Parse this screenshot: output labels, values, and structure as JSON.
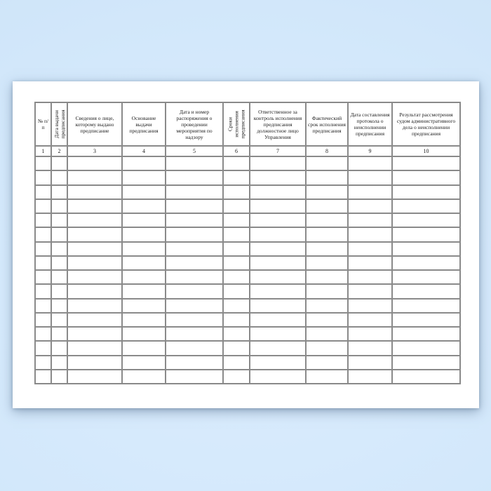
{
  "background": {
    "tint_center": "#dcedfe",
    "tint_edge": "#cbe2f6"
  },
  "paper": {
    "color": "#ffffff"
  },
  "table": {
    "grid_color": "#8a8a8a",
    "outer_border_color": "#4a4a4a",
    "row_count": 16,
    "columns": [
      {
        "num": "1",
        "label": "№ п/п"
      },
      {
        "num": "2",
        "label": "Дата выдачи предписания"
      },
      {
        "num": "3",
        "label": "Сведения о лице, которому выдано предписание"
      },
      {
        "num": "4",
        "label": "Основание выдачи предписания"
      },
      {
        "num": "5",
        "label": "Дата и номер распоряжения о проведении мероприятия по надзору"
      },
      {
        "num": "6",
        "label": "Сроки исполнения предписания"
      },
      {
        "num": "7",
        "label": "Ответственное за контроль исполнения предписания должностное лицо Управления"
      },
      {
        "num": "8",
        "label": "Фактический срок исполнения предписания"
      },
      {
        "num": "9",
        "label": "Дата составления протокола о неисполнении предписания"
      },
      {
        "num": "10",
        "label": "Результат рассмотрения судом административного дела о неисполнении предписания"
      }
    ]
  }
}
